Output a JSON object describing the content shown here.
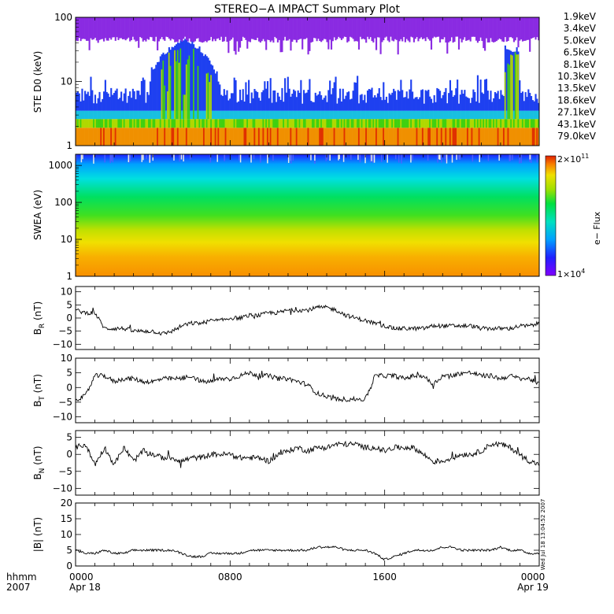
{
  "title": "STEREO−A IMPACT Summary Plot",
  "footer": {
    "axis_label_line1": "hhmm",
    "axis_label_line2": "2007",
    "time_ticks": [
      {
        "label": "0000",
        "date": "Apr 18",
        "hour": 0
      },
      {
        "label": "0800",
        "date": "",
        "hour": 8
      },
      {
        "label": "1600",
        "date": "",
        "hour": 16
      },
      {
        "label": "0000",
        "date": "Apr 19",
        "hour": 24
      }
    ],
    "timestamp": "Wed Jul 18 13:04:52 2007"
  },
  "colorbar": {
    "max_label_base": "2×10",
    "max_label_exp": "11",
    "min_label_base": "1×10",
    "min_label_exp": "4",
    "title": "e− Flux"
  },
  "chart_data": [
    {
      "type": "heatmap",
      "name": "ste",
      "ylabel": "STE D0 (keV)",
      "yscale": "log",
      "ylim": [
        1,
        100
      ],
      "yticks": [
        {
          "v": 1,
          "label": "1"
        },
        {
          "v": 10,
          "label": "10"
        },
        {
          "v": 100,
          "label": "100"
        }
      ],
      "legend": [
        {
          "label": "1.9keV",
          "color": "#7b1fd6"
        },
        {
          "label": "3.4keV",
          "color": "#3a1fe0"
        },
        {
          "label": "5.0keV",
          "color": "#1e40f0"
        },
        {
          "label": "6.5keV",
          "color": "#1e78f0"
        },
        {
          "label": "8.1keV",
          "color": "#18c0e0"
        },
        {
          "label": "10.3keV",
          "color": "#10d060"
        },
        {
          "label": "13.5keV",
          "color": "#40d010"
        },
        {
          "label": "18.6keV",
          "color": "#b0d800"
        },
        {
          "label": "27.1keV",
          "color": "#f0e000"
        },
        {
          "label": "43.1keV",
          "color": "#f09000"
        },
        {
          "label": "79.0keV",
          "color": "#e03000"
        }
      ]
    },
    {
      "type": "heatmap",
      "name": "swea",
      "ylabel": "SWEA (eV)",
      "yscale": "log",
      "ylim": [
        1,
        2000
      ],
      "yticks": [
        {
          "v": 1,
          "label": "1"
        },
        {
          "v": 10,
          "label": "10"
        },
        {
          "v": 100,
          "label": "100"
        },
        {
          "v": 1000,
          "label": "1000"
        }
      ]
    },
    {
      "type": "line",
      "name": "br",
      "ylabel_main": "B",
      "ylabel_sub": "R",
      "ylabel_unit": " (nT)",
      "ylim": [
        -12,
        12
      ],
      "yticks": [
        {
          "v": -10,
          "label": "−10"
        },
        {
          "v": -5,
          "label": "−5"
        },
        {
          "v": 0,
          "label": "0"
        },
        {
          "v": 5,
          "label": "5"
        },
        {
          "v": 10,
          "label": "10"
        }
      ],
      "x_hours": [
        0,
        0.5,
        1,
        1.5,
        2,
        2.5,
        3,
        3.5,
        4,
        4.5,
        5,
        5.5,
        6,
        6.5,
        7,
        7.5,
        8,
        8.5,
        9,
        9.5,
        10,
        10.5,
        11,
        11.5,
        12,
        12.5,
        13,
        13.5,
        14,
        14.5,
        15,
        15.5,
        16,
        16.5,
        17,
        17.5,
        18,
        18.5,
        19,
        19.5,
        20,
        20.5,
        21,
        21.5,
        22,
        22.5,
        23,
        23.5,
        24
      ],
      "values": [
        3,
        2,
        2,
        -4,
        -4,
        -4,
        -5,
        -5,
        -5,
        -6,
        -5,
        -3,
        -2,
        -2,
        -1,
        -1,
        0,
        0,
        1,
        1,
        2,
        2,
        3,
        3,
        3,
        4,
        4,
        3,
        1,
        0,
        -1,
        -2,
        -3,
        -4,
        -4,
        -4,
        -4,
        -3,
        -3,
        -3,
        -3,
        -3,
        -4,
        -4,
        -4,
        -4,
        -3,
        -3,
        -2
      ]
    },
    {
      "type": "line",
      "name": "bt",
      "ylabel_main": "B",
      "ylabel_sub": "T",
      "ylabel_unit": " (nT)",
      "ylim": [
        -12,
        10
      ],
      "yticks": [
        {
          "v": -10,
          "label": "−10"
        },
        {
          "v": -5,
          "label": "−5"
        },
        {
          "v": 0,
          "label": "0"
        },
        {
          "v": 5,
          "label": "5"
        },
        {
          "v": 10,
          "label": "10"
        }
      ],
      "x_hours": [
        0,
        0.5,
        1,
        1.5,
        2,
        2.5,
        3,
        3.5,
        4,
        4.5,
        5,
        5.5,
        6,
        6.5,
        7,
        7.5,
        8,
        8.5,
        9,
        9.5,
        10,
        10.5,
        11,
        11.5,
        12,
        12.5,
        13,
        13.5,
        14,
        14.5,
        15,
        15.5,
        16,
        16.5,
        17,
        17.5,
        18,
        18.5,
        19,
        19.5,
        20,
        20.5,
        21,
        21.5,
        22,
        22.5,
        23,
        23.5,
        24
      ],
      "values": [
        -4,
        -3,
        4,
        4,
        2,
        3,
        3,
        2,
        2,
        3,
        3,
        3,
        4,
        2,
        2,
        3,
        3,
        4,
        5,
        4,
        4,
        3,
        3,
        2,
        1,
        -2,
        -3,
        -4,
        -4,
        -4,
        -4,
        4,
        4,
        4,
        3,
        4,
        4,
        1,
        4,
        4,
        5,
        5,
        4,
        4,
        3,
        4,
        3,
        3,
        1
      ]
    },
    {
      "type": "line",
      "name": "bn",
      "ylabel_main": "B",
      "ylabel_sub": "N",
      "ylabel_unit": " (nT)",
      "ylim": [
        -12,
        7
      ],
      "yticks": [
        {
          "v": -10,
          "label": "−10"
        },
        {
          "v": -5,
          "label": "−5"
        },
        {
          "v": 0,
          "label": "0"
        },
        {
          "v": 5,
          "label": "5"
        }
      ],
      "x_hours": [
        0,
        0.5,
        1,
        1.5,
        2,
        2.5,
        3,
        3.5,
        4,
        4.5,
        5,
        5.5,
        6,
        6.5,
        7,
        7.5,
        8,
        8.5,
        9,
        9.5,
        10,
        10.5,
        11,
        11.5,
        12,
        12.5,
        13,
        13.5,
        14,
        14.5,
        15,
        15.5,
        16,
        16.5,
        17,
        17.5,
        18,
        18.5,
        19,
        19.5,
        20,
        20.5,
        21,
        21.5,
        22,
        22.5,
        23,
        23.5,
        24
      ],
      "values": [
        2,
        3,
        -3,
        2,
        -3,
        2,
        -2,
        1,
        0,
        -1,
        -1,
        -2,
        -1,
        -1,
        0,
        0,
        0,
        -1,
        -1,
        -1,
        -2,
        0,
        1,
        2,
        1,
        2,
        2,
        3,
        3,
        3,
        2,
        2,
        1,
        2,
        2,
        2,
        0,
        -2,
        -2,
        -1,
        0,
        0,
        1,
        3,
        3,
        2,
        0,
        -2,
        -3
      ]
    },
    {
      "type": "line",
      "name": "bmag",
      "ylabel_main": "|B| (nT)",
      "ylim": [
        0,
        20
      ],
      "yticks": [
        {
          "v": 0,
          "label": "0"
        },
        {
          "v": 5,
          "label": "5"
        },
        {
          "v": 10,
          "label": "10"
        },
        {
          "v": 15,
          "label": "15"
        },
        {
          "v": 20,
          "label": "20"
        }
      ],
      "x_hours": [
        0,
        0.5,
        1,
        1.5,
        2,
        2.5,
        3,
        3.5,
        4,
        4.5,
        5,
        5.5,
        6,
        6.5,
        7,
        7.5,
        8,
        8.5,
        9,
        9.5,
        10,
        10.5,
        11,
        11.5,
        12,
        12.5,
        13,
        13.5,
        14,
        14.5,
        15,
        15.5,
        16,
        16.5,
        17,
        17.5,
        18,
        18.5,
        19,
        19.5,
        20,
        20.5,
        21,
        21.5,
        22,
        22.5,
        23,
        23.5,
        24
      ],
      "values": [
        5,
        4,
        4,
        5,
        4,
        4,
        5,
        5,
        5,
        5,
        5,
        4,
        3,
        3,
        4,
        4,
        4,
        4,
        5,
        5,
        5,
        5,
        5,
        5,
        5,
        6,
        6,
        6,
        5,
        5,
        5,
        4,
        2,
        3,
        4,
        5,
        5,
        5,
        6,
        6,
        5,
        5,
        5,
        5,
        6,
        5,
        5,
        4,
        4
      ]
    }
  ]
}
